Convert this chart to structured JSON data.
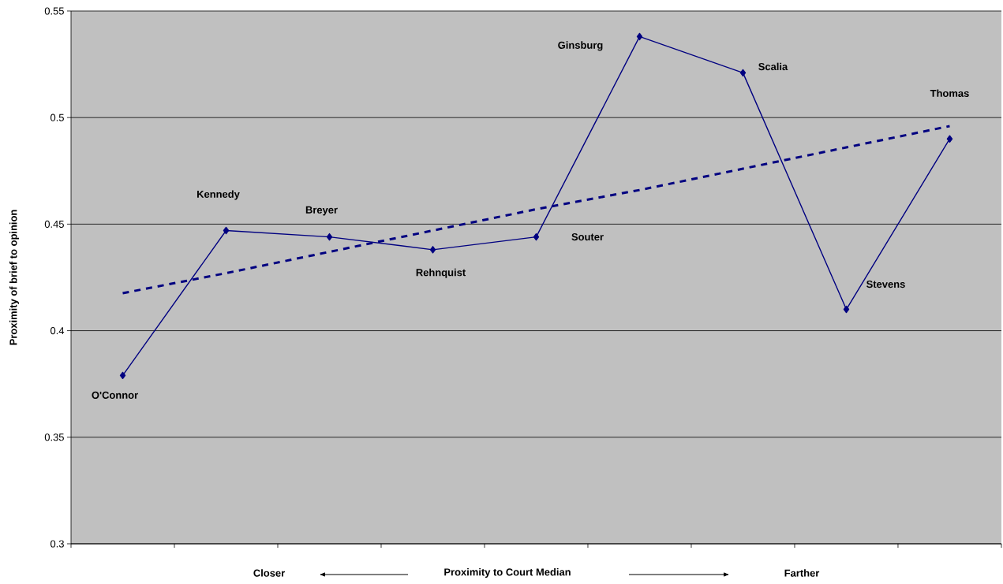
{
  "chart_data": {
    "type": "line",
    "categories": [
      null,
      null,
      null,
      null,
      null,
      null,
      null,
      null,
      null
    ],
    "series": [
      {
        "color": "#000080",
        "values": [
          0.379,
          0.447,
          0.444,
          0.438,
          0.444,
          0.538,
          0.521,
          0.41,
          0.49
        ],
        "marker": "diamond",
        "line_style": "solid"
      },
      {
        "type": "line",
        "color": "#000080",
        "values": [
          0.4176,
          0.427,
          0.437,
          0.447,
          0.457,
          0.466,
          0.476,
          0.486,
          0.496
        ],
        "marker": "none",
        "line_style": "dashed"
      }
    ],
    "xlabel": "Proximity to Court Median",
    "ylabel": "Proximity of brief to opinion",
    "annotations": [
      "Closer",
      "Farther",
      "O'Connor",
      "Kennedy",
      "Breyer",
      "Rehnquist",
      "Souter",
      "Ginsburg",
      "Scalia",
      "Stevens",
      "Thomas"
    ],
    "ylim": [
      0.3,
      0.55
    ],
    "yticks": [
      0.3,
      0.35,
      0.4,
      0.45,
      0.5,
      0.55
    ],
    "grid": "y"
  }
}
